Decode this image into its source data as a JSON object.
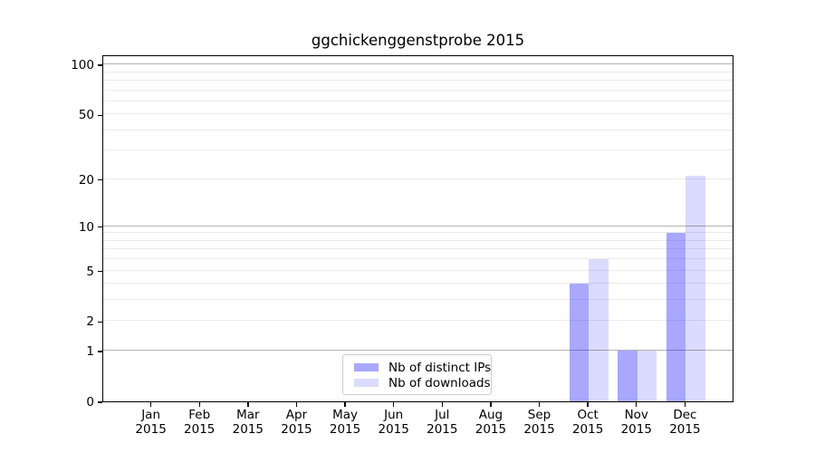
{
  "chart_data": {
    "type": "bar",
    "title": "ggchickenggenstprobe 2015",
    "categories": [
      "Jan 2015",
      "Feb 2015",
      "Mar 2015",
      "Apr 2015",
      "May 2015",
      "Jun 2015",
      "Jul 2015",
      "Aug 2015",
      "Sep 2015",
      "Oct 2015",
      "Nov 2015",
      "Dec 2015"
    ],
    "series": [
      {
        "name": "Nb of distinct IPs",
        "color": "rgba(0,0,255,0.34)",
        "values": [
          0,
          0,
          0,
          0,
          0,
          0,
          0,
          0,
          0,
          4,
          1,
          9
        ]
      },
      {
        "name": "Nb of downloads",
        "color": "rgba(0,0,255,0.14)",
        "values": [
          0,
          0,
          0,
          0,
          0,
          0,
          0,
          0,
          0,
          6,
          1,
          21
        ]
      }
    ],
    "yscale": "log1p",
    "ylim": [
      0,
      115
    ],
    "yticks": [
      0,
      1,
      2,
      5,
      10,
      20,
      50,
      100
    ],
    "major_gridlines": [
      1,
      10,
      100
    ],
    "minor_gridlines": [
      2,
      3,
      4,
      5,
      6,
      7,
      8,
      9,
      20,
      30,
      40,
      50,
      60,
      70,
      80,
      90
    ],
    "xlabel": "",
    "ylabel": "",
    "grid": true,
    "legend_position": "lower center"
  },
  "colors": {
    "major_grid": "#b3b3b3",
    "minor_grid": "#ebebeb",
    "spine": "#000000",
    "background": "#ffffff"
  }
}
